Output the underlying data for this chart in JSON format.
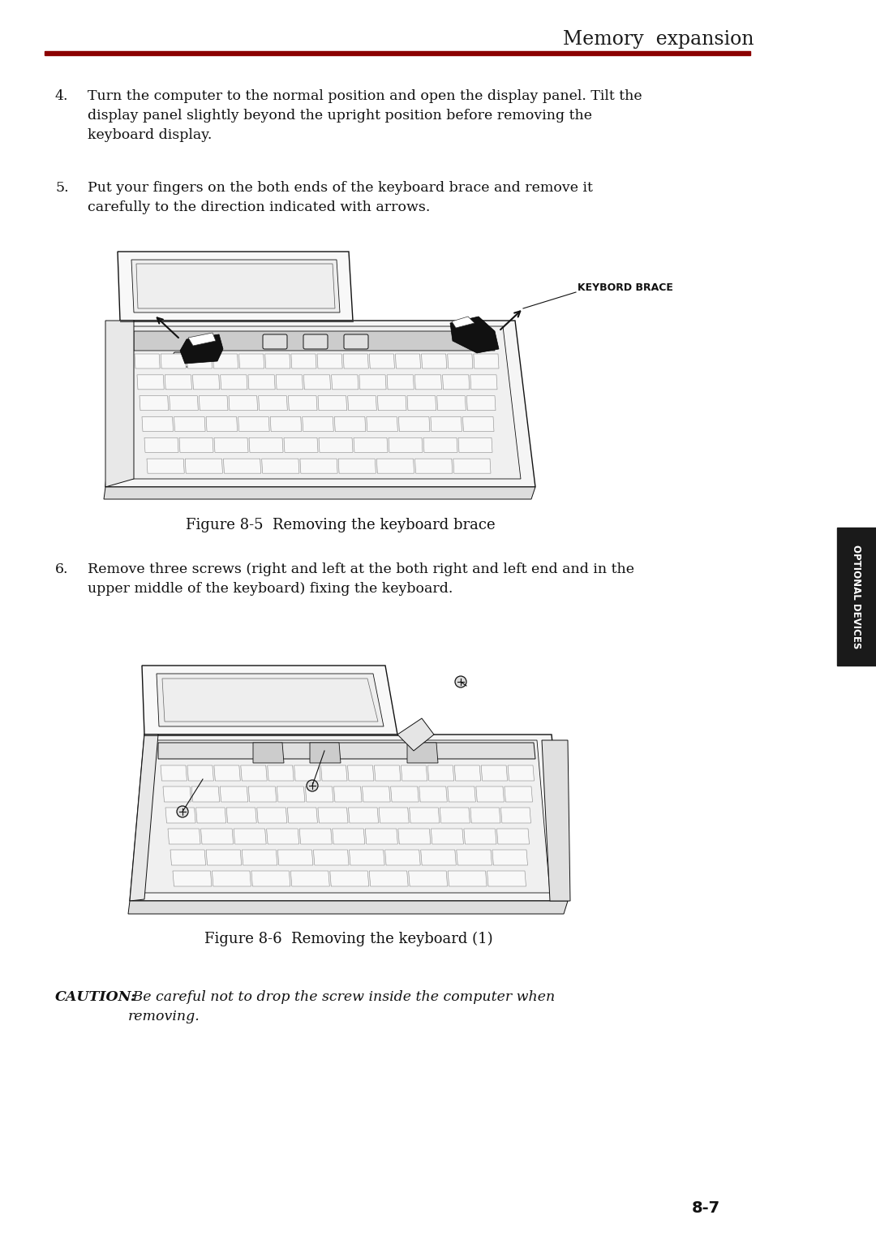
{
  "title": "Memory  expansion",
  "title_color": "#1a1a1a",
  "title_line_color": "#8B0000",
  "background_color": "#ffffff",
  "page_number": "8-7",
  "sidebar_text": "OPTIONAL\nDEVICES",
  "sidebar_bg": "#1a1a1a",
  "sidebar_text_color": "#ffffff",
  "step4_num": "4.",
  "step4_text": "Turn the computer to the normal position and open the display panel. Tilt the\ndisplay panel slightly beyond the upright position before removing the\nkeyboard display.",
  "step5_num": "5.",
  "step5_text": "Put your fingers on the both ends of the keyboard brace and remove it\ncarefully to the direction indicated with arrows.",
  "fig5_caption": "Figure 8-5  Removing the keyboard brace",
  "step6_num": "6.",
  "step6_text": "Remove three screws (right and left at the both right and left end and in the\nupper middle of the keyboard) fixing the keyboard.",
  "fig6_caption": "Figure 8-6  Removing the keyboard (1)",
  "caution_italic": "CAUTION: ",
  "caution_text": " Be careful not to drop the screw inside the computer when\nremoving.",
  "keybord_brace_label": "KEYBORD BRACE",
  "text_color": "#111111",
  "edge_color": "#111111",
  "gray_color": "#aaaaaa",
  "dark_color": "#222222"
}
